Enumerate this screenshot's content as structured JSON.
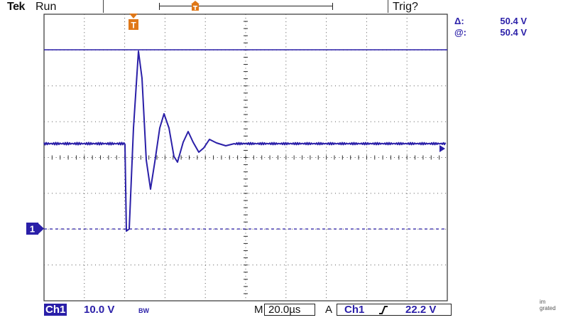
{
  "header": {
    "brand": "Tek",
    "run_state": "Run",
    "trigger_status": "Trig?"
  },
  "cursor_readout": {
    "delta_label": "Δ:",
    "delta_value": "50.4 V",
    "at_label": "@:",
    "at_value": "50.4 V"
  },
  "channel_marker": "1",
  "trigger_marker": "T",
  "status_bar": {
    "channel_label": "Ch1",
    "volts_per_div": "10.0 V",
    "bandwidth_limit": "BW",
    "timebase_prefix": "M",
    "timebase": "20.0µs",
    "trigger_mode": "A",
    "trigger_source": "Ch1",
    "trigger_slope_icon": "rising-edge-icon",
    "trigger_level": "22.2 V"
  },
  "corner_fragment": [
    "im",
    "grated"
  ],
  "colors": {
    "trace": "#2a1fa8",
    "marker_orange": "#e07818",
    "grid": "#444444",
    "cursor_line": "#2a1fa8"
  }
}
